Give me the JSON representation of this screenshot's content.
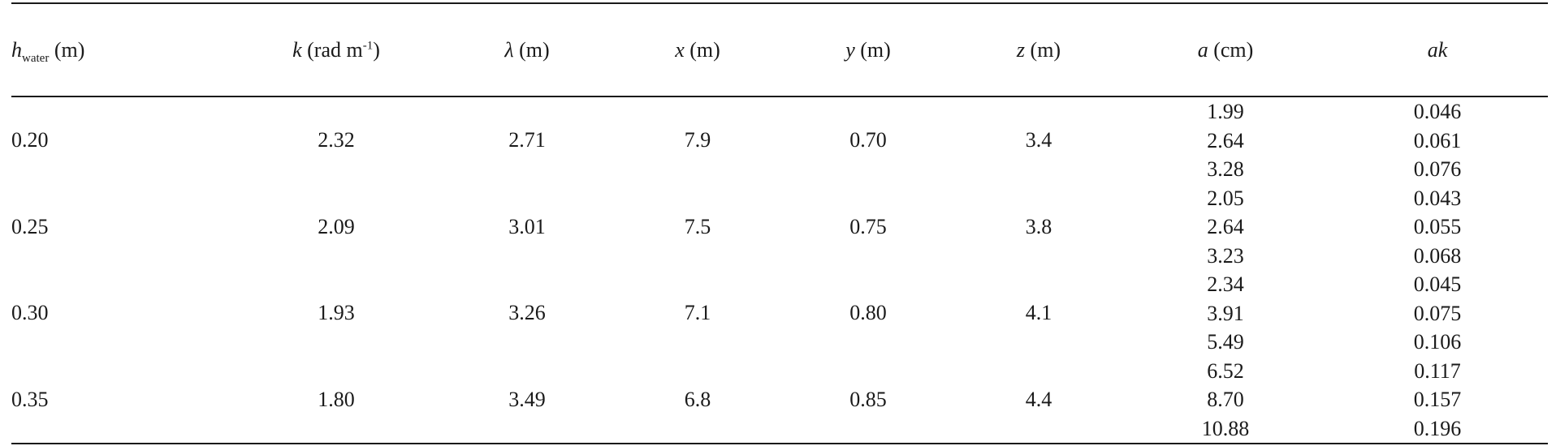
{
  "table": {
    "headers": {
      "h_water": {
        "symbol": "h",
        "subscript": "water",
        "unit": "(m)"
      },
      "k": {
        "symbol": "k",
        "unit_pre": "(rad m",
        "superscript": "-1",
        "unit_post": ")"
      },
      "lambda": {
        "symbol": "λ",
        "unit": "(m)"
      },
      "x": {
        "symbol": "x",
        "unit": "(m)"
      },
      "y": {
        "symbol": "y",
        "unit": "(m)"
      },
      "z": {
        "symbol": "z",
        "unit": "(m)"
      },
      "a": {
        "symbol": "a",
        "unit": "(cm)"
      },
      "ak": {
        "symbol": "ak"
      }
    },
    "groups": [
      {
        "h_water": "0.20",
        "k": "2.32",
        "lambda": "2.71",
        "x": "7.9",
        "y": "0.70",
        "z": "3.4",
        "a": [
          "1.99",
          "2.64",
          "3.28"
        ],
        "ak": [
          "0.046",
          "0.061",
          "0.076"
        ]
      },
      {
        "h_water": "0.25",
        "k": "2.09",
        "lambda": "3.01",
        "x": "7.5",
        "y": "0.75",
        "z": "3.8",
        "a": [
          "2.05",
          "2.64",
          "3.23"
        ],
        "ak": [
          "0.043",
          "0.055",
          "0.068"
        ]
      },
      {
        "h_water": "0.30",
        "k": "1.93",
        "lambda": "3.26",
        "x": "7.1",
        "y": "0.80",
        "z": "4.1",
        "a": [
          "2.34",
          "3.91",
          "5.49"
        ],
        "ak": [
          "0.045",
          "0.075",
          "0.106"
        ]
      },
      {
        "h_water": "0.35",
        "k": "1.80",
        "lambda": "3.49",
        "x": "6.8",
        "y": "0.85",
        "z": "4.4",
        "a": [
          "6.52",
          "8.70",
          "10.88"
        ],
        "ak": [
          "0.117",
          "0.157",
          "0.196"
        ]
      }
    ]
  }
}
